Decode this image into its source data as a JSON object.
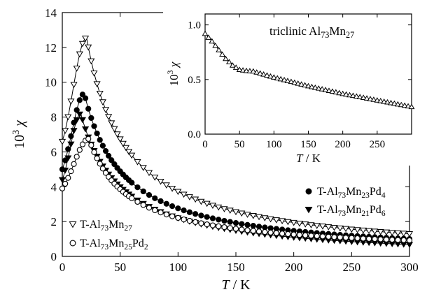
{
  "chart_data": [
    {
      "type": "scatter",
      "role": "main",
      "xlabel": {
        "italic": "T",
        "rest": " / K"
      },
      "ylabel": {
        "pre": "10",
        "sup": "3",
        "post": " ",
        "greek": "χ"
      },
      "xlim": [
        0,
        300
      ],
      "ylim": [
        0,
        14
      ],
      "x_ticks": [
        0,
        50,
        100,
        150,
        200,
        250,
        300
      ],
      "y_ticks": [
        0,
        2,
        4,
        6,
        8,
        10,
        12,
        14
      ],
      "grid": false,
      "series": [
        {
          "name": "T-Al73Mn27",
          "legend_parts": [
            [
              "T-Al",
              ""
            ],
            [
              "73",
              "sub"
            ],
            [
              "Mn",
              ""
            ],
            [
              "27",
              "sub"
            ]
          ],
          "marker": "triangle-down-open",
          "peak_x": 21,
          "peak_y": 12.55,
          "y_at_0": 6.6,
          "y_at_300": 1.3,
          "x": [
            0,
            5,
            10,
            15,
            20,
            25,
            30,
            35,
            40,
            50,
            60,
            80,
            100,
            150,
            200,
            250,
            300
          ],
          "y": [
            6.6,
            9.6,
            11.6,
            12.4,
            12.55,
            12.4,
            11.1,
            9.7,
            8.3,
            6.5,
            5.3,
            4.1,
            3.35,
            2.35,
            1.85,
            1.55,
            1.3
          ]
        },
        {
          "name": "T-Al73Mn23Pd4",
          "legend_parts": [
            [
              "T-Al",
              ""
            ],
            [
              "73",
              "sub"
            ],
            [
              "Mn",
              ""
            ],
            [
              "23",
              "sub"
            ],
            [
              "Pd",
              ""
            ],
            [
              "4",
              "sub"
            ]
          ],
          "marker": "circle-filled",
          "peak_x": 19,
          "peak_y": 9.35,
          "y_at_0": 5.0,
          "y_at_300": 1.0,
          "x": [
            0,
            5,
            10,
            15,
            20,
            25,
            30,
            35,
            40,
            50,
            60,
            80,
            100,
            150,
            200,
            250,
            300
          ],
          "y": [
            5.0,
            7.1,
            8.6,
            9.2,
            9.35,
            9.1,
            8.4,
            7.3,
            6.3,
            4.9,
            4.1,
            3.1,
            2.55,
            1.8,
            1.4,
            1.15,
            1.0
          ]
        },
        {
          "name": "T-Al73Mn21Pd6",
          "legend_parts": [
            [
              "T-Al",
              ""
            ],
            [
              "73",
              "sub"
            ],
            [
              "Mn",
              ""
            ],
            [
              "21",
              "sub"
            ],
            [
              "Pd",
              ""
            ],
            [
              "6",
              "sub"
            ]
          ],
          "marker": "triangle-down-filled",
          "peak_x": 16,
          "peak_y": 8.2,
          "y_at_0": 4.4,
          "y_at_300": 0.68,
          "x": [
            0,
            5,
            10,
            15,
            20,
            25,
            30,
            35,
            40,
            50,
            60,
            80,
            100,
            150,
            200,
            250,
            300
          ],
          "y": [
            4.4,
            6.5,
            7.8,
            8.2,
            7.9,
            6.6,
            5.6,
            4.7,
            4.0,
            3.1,
            2.5,
            1.9,
            1.55,
            1.1,
            0.9,
            0.78,
            0.68
          ]
        },
        {
          "name": "T-Al73Mn25Pd2",
          "legend_parts": [
            [
              "T-Al",
              ""
            ],
            [
              "73",
              "sub"
            ],
            [
              "Mn",
              ""
            ],
            [
              "25",
              "sub"
            ],
            [
              "Pd",
              ""
            ],
            [
              "2",
              "sub"
            ]
          ],
          "marker": "circle-open",
          "peak_x": 23,
          "peak_y": 6.75,
          "y_at_0": 3.9,
          "y_at_300": 0.92,
          "x": [
            0,
            5,
            10,
            15,
            20,
            25,
            30,
            35,
            40,
            50,
            60,
            80,
            100,
            150,
            200,
            250,
            300
          ],
          "y": [
            3.9,
            5.2,
            6.0,
            6.55,
            6.75,
            6.7,
            6.5,
            5.9,
            5.2,
            4.3,
            3.65,
            2.8,
            2.3,
            1.65,
            1.25,
            1.05,
            0.92
          ]
        }
      ]
    },
    {
      "type": "scatter",
      "role": "inset",
      "title_parts": [
        [
          "triclinic Al",
          ""
        ],
        [
          "73",
          "sub"
        ],
        [
          "Mn",
          ""
        ],
        [
          "27",
          "sub"
        ]
      ],
      "xlabel": {
        "italic": "T",
        "rest": " / K"
      },
      "ylabel": {
        "pre": "10",
        "sup": "3",
        "post": " ",
        "greek": "χ"
      },
      "xlim": [
        0,
        300
      ],
      "ylim": [
        0,
        1.1
      ],
      "x_ticks": [
        0,
        50,
        100,
        150,
        200,
        250
      ],
      "y_ticks": [
        0.0,
        0.5,
        1.0
      ],
      "y_tick_labels": [
        "0.0",
        "0.5",
        "1.0"
      ],
      "series": [
        {
          "name": "triclinic Al73Mn27",
          "marker": "triangle-up-open",
          "x": [
            0,
            10,
            20,
            30,
            40,
            50,
            60,
            70,
            100,
            150,
            200,
            250,
            300
          ],
          "y": [
            0.92,
            0.85,
            0.77,
            0.69,
            0.63,
            0.59,
            0.58,
            0.575,
            0.52,
            0.44,
            0.37,
            0.31,
            0.25
          ]
        }
      ]
    }
  ]
}
